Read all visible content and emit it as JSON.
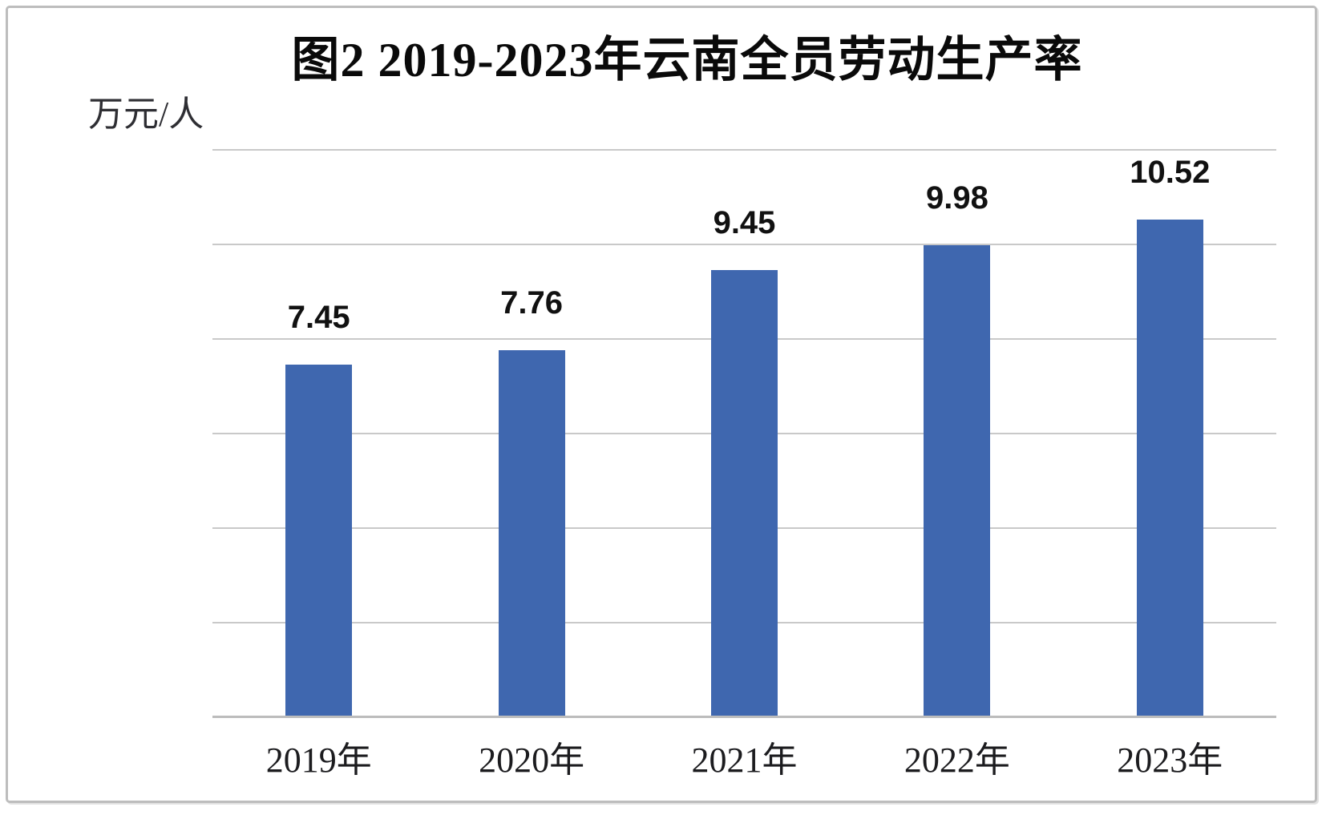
{
  "chart_data": {
    "type": "bar",
    "title": "图2 2019-2023年云南全员劳动生产率",
    "ylabel": "万元/人",
    "xlabel": "",
    "categories": [
      "2019年",
      "2020年",
      "2021年",
      "2022年",
      "2023年"
    ],
    "values": [
      7.45,
      7.76,
      9.45,
      9.98,
      10.52
    ],
    "value_labels": [
      "7.45",
      "7.76",
      "9.45",
      "9.98",
      "10.52"
    ],
    "ylim": [
      0,
      12
    ],
    "gridline_step": 2,
    "grid": true,
    "legend_position": "none",
    "bar_color": "#3f67af",
    "gridline_color": "#c9c9c9",
    "axis_line_color": "#bcbcbc",
    "frame_border_color": "#bdbdbd"
  }
}
